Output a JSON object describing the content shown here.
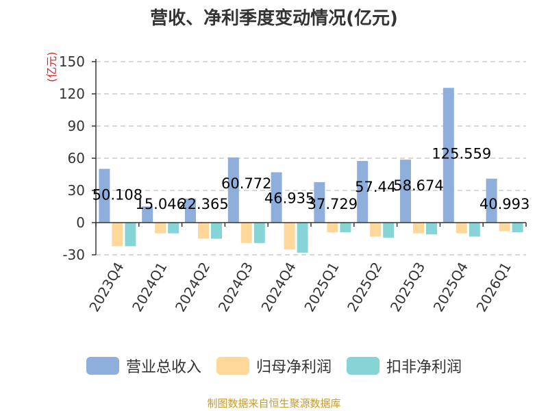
{
  "chart_data": {
    "type": "bar",
    "title": "营收、净利季度变动情况(亿元)",
    "unit": "(亿元)",
    "categories": [
      "2023Q4",
      "2024Q1",
      "2024Q2",
      "2024Q3",
      "2024Q4",
      "2025Q1",
      "2025Q2",
      "2025Q3",
      "2025Q4",
      "2026Q1"
    ],
    "ylim": [
      -30,
      150
    ],
    "yticks": [
      "150",
      "120",
      "90",
      "60",
      "30",
      "0",
      "-30"
    ],
    "grid": true,
    "legend_position": "bottom",
    "series": [
      {
        "name": "营业总收入",
        "color": "#8eaedb",
        "values": [
          50.108,
          15.046,
          22.365,
          60.772,
          46.935,
          37.729,
          57.44,
          58.674,
          125.559,
          40.993
        ],
        "labels": [
          "50.108",
          "15.046",
          "22.365",
          "60.772",
          "46.935",
          "37.729",
          "57.44",
          "58.674",
          "125.559",
          "40.993"
        ]
      },
      {
        "name": "归母净利润",
        "color": "#fdd89a",
        "values": [
          -22,
          -10,
          -15,
          -19,
          -25,
          -9,
          -13,
          -10,
          -10,
          -8
        ]
      },
      {
        "name": "扣非净利润",
        "color": "#86d4d6",
        "values": [
          -22,
          -10,
          -15,
          -19,
          -28,
          -9,
          -14,
          -11,
          -13,
          -9
        ]
      }
    ]
  },
  "source": "制图数据来自恒生聚源数据库"
}
